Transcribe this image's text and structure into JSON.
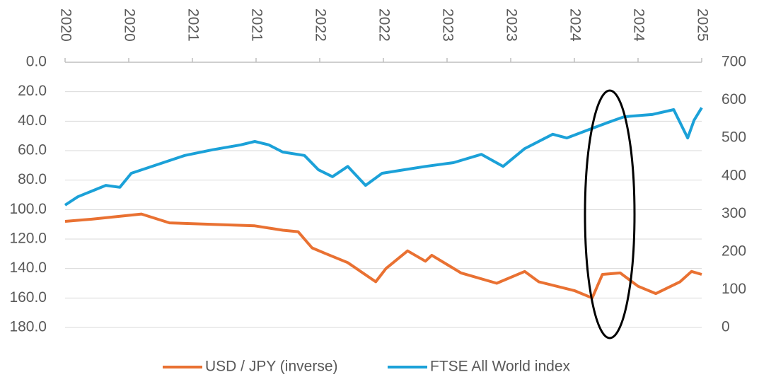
{
  "chart_data": {
    "type": "line",
    "xlim": [
      2020,
      2025
    ],
    "xticks": [
      {
        "value": 2020,
        "label": "2020"
      },
      {
        "value": 2020.5,
        "label": "2020"
      },
      {
        "value": 2021,
        "label": "2021"
      },
      {
        "value": 2021.5,
        "label": "2021"
      },
      {
        "value": 2022,
        "label": "2022"
      },
      {
        "value": 2022.5,
        "label": "2022"
      },
      {
        "value": 2023,
        "label": "2023"
      },
      {
        "value": 2023.5,
        "label": "2023"
      },
      {
        "value": 2024,
        "label": "2024"
      },
      {
        "value": 2024.5,
        "label": "2024"
      },
      {
        "value": 2025,
        "label": "2025"
      }
    ],
    "ylim": [
      0,
      180
    ],
    "y_inverted": true,
    "yticks": [
      {
        "value": 0,
        "label": "0.0"
      },
      {
        "value": 20,
        "label": "20.0"
      },
      {
        "value": 40,
        "label": "40.0"
      },
      {
        "value": 60,
        "label": "60.0"
      },
      {
        "value": 80,
        "label": "80.0"
      },
      {
        "value": 100,
        "label": "100.0"
      },
      {
        "value": 120,
        "label": "120.0"
      },
      {
        "value": 140,
        "label": "140.0"
      },
      {
        "value": 160,
        "label": "160.0"
      },
      {
        "value": 180,
        "label": "180.0"
      }
    ],
    "y2lim": [
      0,
      700
    ],
    "y2ticks": [
      0,
      100,
      200,
      300,
      400,
      500,
      600,
      700
    ],
    "grid": true,
    "legend": "bottom",
    "series": [
      {
        "name": "USD / JPY (inverse)",
        "color": "#e97132",
        "axis": "y",
        "x": [
          2020.0,
          2020.21,
          2020.6,
          2020.82,
          2021.16,
          2021.49,
          2021.71,
          2021.83,
          2021.94,
          2022.05,
          2022.22,
          2022.44,
          2022.52,
          2022.69,
          2022.83,
          2022.88,
          2023.11,
          2023.39,
          2023.61,
          2023.72,
          2024.0,
          2024.14,
          2024.22,
          2024.36,
          2024.5,
          2024.64,
          2024.83,
          2024.92,
          2025.0
        ],
        "values": [
          108,
          106.5,
          103,
          109,
          110,
          111,
          114,
          115,
          126,
          130,
          136,
          149,
          140,
          128,
          135,
          131,
          143,
          150,
          142,
          149,
          155,
          160,
          144,
          143,
          152,
          157,
          149,
          142,
          144
        ]
      },
      {
        "name": "FTSE All World index",
        "color": "#1ba1d8",
        "axis": "y2",
        "x": [
          2020.0,
          2020.1,
          2020.32,
          2020.43,
          2020.52,
          2020.77,
          2020.94,
          2021.16,
          2021.38,
          2021.49,
          2021.6,
          2021.71,
          2021.88,
          2021.99,
          2022.1,
          2022.22,
          2022.36,
          2022.49,
          2022.66,
          2022.83,
          2023.05,
          2023.27,
          2023.44,
          2023.61,
          2023.83,
          2023.94,
          2024.16,
          2024.28,
          2024.39,
          2024.61,
          2024.78,
          2024.89,
          2024.94,
          2025.0
        ],
        "values": [
          323,
          345,
          375,
          370,
          407,
          435,
          454,
          469,
          482,
          491,
          482,
          463,
          454,
          416,
          398,
          425,
          375,
          407,
          416,
          425,
          435,
          457,
          425,
          472,
          510,
          500,
          528,
          543,
          556,
          562,
          575,
          500,
          547,
          580
        ]
      }
    ]
  }
}
